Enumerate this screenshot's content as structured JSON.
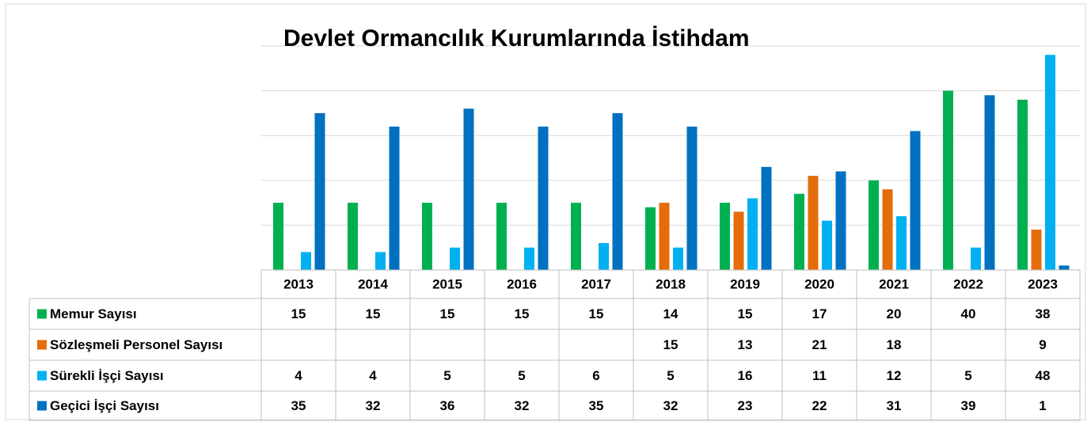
{
  "chart_data": {
    "type": "bar",
    "title": "Devlet Ormancılık Kurumlarında İstihdam",
    "categories": [
      "2013",
      "2014",
      "2015",
      "2016",
      "2017",
      "2018",
      "2019",
      "2020",
      "2021",
      "2022",
      "2023"
    ],
    "series": [
      {
        "name": "Memur Sayısı",
        "color": "#00b050",
        "values": [
          15,
          15,
          15,
          15,
          15,
          14,
          15,
          17,
          20,
          40,
          38
        ]
      },
      {
        "name": "Sözleşmeli Personel Sayısı",
        "color": "#e46c0a",
        "values": [
          null,
          null,
          null,
          null,
          null,
          15,
          13,
          21,
          18,
          null,
          9
        ]
      },
      {
        "name": "Sürekli İşçi Sayısı",
        "color": "#00b0f0",
        "values": [
          4,
          4,
          5,
          5,
          6,
          5,
          16,
          11,
          12,
          5,
          48
        ]
      },
      {
        "name": "Geçici İşçi Sayısı",
        "color": "#0070c0",
        "values": [
          35,
          32,
          36,
          32,
          35,
          32,
          23,
          22,
          31,
          39,
          1
        ]
      }
    ],
    "ylim": [
      0,
      50
    ],
    "yticks": [
      0,
      10,
      20,
      30,
      40,
      50
    ],
    "grid": true,
    "data_table": true
  }
}
